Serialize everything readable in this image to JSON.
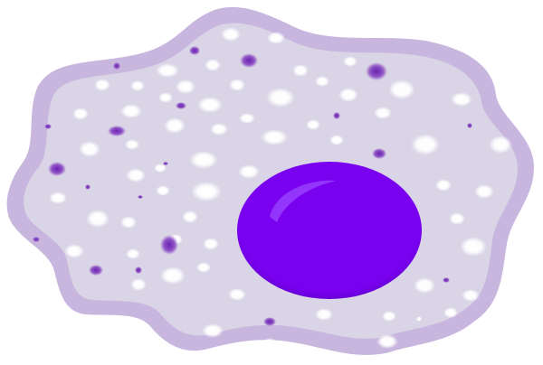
{
  "colors": {
    "background": "#ffffff",
    "membrane": "#c8b6de",
    "cytoplasm": "#d9d4e6",
    "vacuole": "#ffffff",
    "granule": "#8b4cc4",
    "granule_dark": "#6a22b0",
    "nucleus_edge": "#5a00c4",
    "nucleus_mid": "#7a00f0",
    "nucleus_highlight": "#9d4dff"
  },
  "illustration": {
    "subject": "cell-illustration",
    "parts": [
      "cell-membrane",
      "cytoplasm",
      "vacuoles",
      "granules",
      "nucleus"
    ]
  }
}
